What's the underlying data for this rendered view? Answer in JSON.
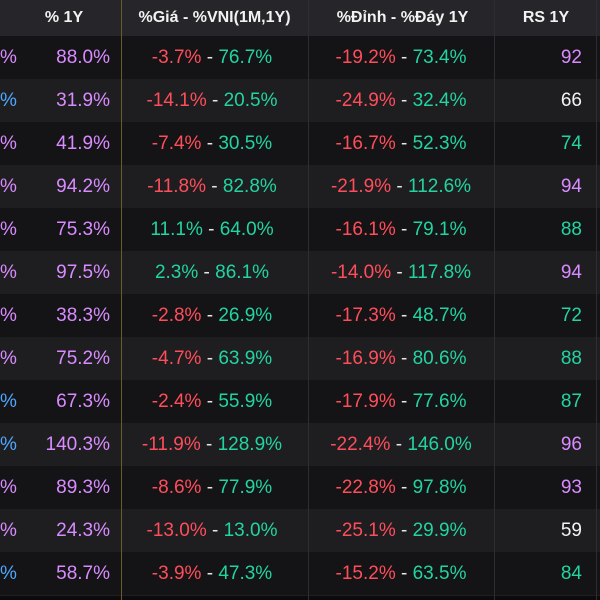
{
  "colors": {
    "negative": "#ff4d5a",
    "positive": "#22d4a0",
    "purple": "#d98bff",
    "white": "#f2f2f2",
    "blue": "#4ea8ff",
    "header_bg": "#26262a"
  },
  "headers": {
    "pct_1y": "% 1Y",
    "gia_vni": "%Giá - %VNI(1M,1Y)",
    "dinh_day": "%Đỉnh - %Đáy 1Y",
    "rs_1y": "RS 1Y"
  },
  "rows": [
    {
      "left_frag": "%",
      "left_color": "purple",
      "pct_1y": "88.0%",
      "pct_color": "purple",
      "gia": "-3.7%",
      "gia_color": "neg",
      "vni": "76.7%",
      "vni_color": "pos",
      "dinh": "-19.2%",
      "day": "73.4%",
      "rs": "92",
      "rs_color": "purple"
    },
    {
      "left_frag": "%",
      "left_color": "blue",
      "pct_1y": "31.9%",
      "pct_color": "purple",
      "gia": "-14.1%",
      "gia_color": "neg",
      "vni": "20.5%",
      "vni_color": "pos",
      "dinh": "-24.9%",
      "day": "32.4%",
      "rs": "66",
      "rs_color": "white"
    },
    {
      "left_frag": "%",
      "left_color": "purple",
      "pct_1y": "41.9%",
      "pct_color": "purple",
      "gia": "-7.4%",
      "gia_color": "neg",
      "vni": "30.5%",
      "vni_color": "pos",
      "dinh": "-16.7%",
      "day": "52.3%",
      "rs": "74",
      "rs_color": "teal"
    },
    {
      "left_frag": "%",
      "left_color": "purple",
      "pct_1y": "94.2%",
      "pct_color": "purple",
      "gia": "-11.8%",
      "gia_color": "neg",
      "vni": "82.8%",
      "vni_color": "pos",
      "dinh": "-21.9%",
      "day": "112.6%",
      "rs": "94",
      "rs_color": "purple"
    },
    {
      "left_frag": "%",
      "left_color": "purple",
      "pct_1y": "75.3%",
      "pct_color": "purple",
      "gia": "11.1%",
      "gia_color": "pos",
      "vni": "64.0%",
      "vni_color": "pos",
      "dinh": "-16.1%",
      "day": "79.1%",
      "rs": "88",
      "rs_color": "teal"
    },
    {
      "left_frag": "%",
      "left_color": "purple",
      "pct_1y": "97.5%",
      "pct_color": "purple",
      "gia": "2.3%",
      "gia_color": "pos",
      "vni": "86.1%",
      "vni_color": "pos",
      "dinh": "-14.0%",
      "day": "117.8%",
      "rs": "94",
      "rs_color": "purple"
    },
    {
      "left_frag": "%",
      "left_color": "purple",
      "pct_1y": "38.3%",
      "pct_color": "purple",
      "gia": "-2.8%",
      "gia_color": "neg",
      "vni": "26.9%",
      "vni_color": "pos",
      "dinh": "-17.3%",
      "day": "48.7%",
      "rs": "72",
      "rs_color": "teal"
    },
    {
      "left_frag": "%",
      "left_color": "purple",
      "pct_1y": "75.2%",
      "pct_color": "purple",
      "gia": "-4.7%",
      "gia_color": "neg",
      "vni": "63.9%",
      "vni_color": "pos",
      "dinh": "-16.9%",
      "day": "80.6%",
      "rs": "88",
      "rs_color": "teal"
    },
    {
      "left_frag": "%",
      "left_color": "blue",
      "pct_1y": "67.3%",
      "pct_color": "purple",
      "gia": "-2.4%",
      "gia_color": "neg",
      "vni": "55.9%",
      "vni_color": "pos",
      "dinh": "-17.9%",
      "day": "77.6%",
      "rs": "87",
      "rs_color": "teal"
    },
    {
      "left_frag": "%",
      "left_color": "blue",
      "pct_1y": "140.3%",
      "pct_color": "purple",
      "gia": "-11.9%",
      "gia_color": "neg",
      "vni": "128.9%",
      "vni_color": "pos",
      "dinh": "-22.4%",
      "day": "146.0%",
      "rs": "96",
      "rs_color": "purple"
    },
    {
      "left_frag": "%",
      "left_color": "purple",
      "pct_1y": "89.3%",
      "pct_color": "purple",
      "gia": "-8.6%",
      "gia_color": "neg",
      "vni": "77.9%",
      "vni_color": "pos",
      "dinh": "-22.8%",
      "day": "97.8%",
      "rs": "93",
      "rs_color": "purple"
    },
    {
      "left_frag": "%",
      "left_color": "purple",
      "pct_1y": "24.3%",
      "pct_color": "purple",
      "gia": "-13.0%",
      "gia_color": "neg",
      "vni": "13.0%",
      "vni_color": "pos",
      "dinh": "-25.1%",
      "day": "29.9%",
      "rs": "59",
      "rs_color": "white"
    },
    {
      "left_frag": "%",
      "left_color": "blue",
      "pct_1y": "58.7%",
      "pct_color": "purple",
      "gia": "-3.9%",
      "gia_color": "neg",
      "vni": "47.3%",
      "vni_color": "pos",
      "dinh": "-15.2%",
      "day": "63.5%",
      "rs": "84",
      "rs_color": "teal"
    }
  ]
}
